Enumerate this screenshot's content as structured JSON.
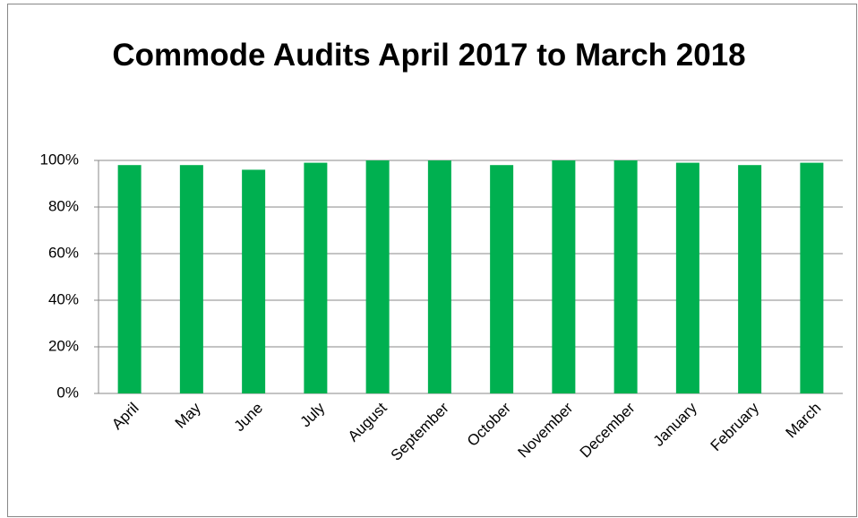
{
  "chart_data": {
    "type": "bar",
    "title": "Commode Audits April 2017 to March 2018",
    "categories": [
      "April",
      "May",
      "June",
      "July",
      "August",
      "September",
      "October",
      "November",
      "December",
      "January",
      "February",
      "March"
    ],
    "values": [
      98,
      98,
      96,
      99,
      100,
      100,
      98,
      100,
      100,
      99,
      98,
      99
    ],
    "color": "#00b050",
    "ylim": [
      0,
      100
    ],
    "yticks": [
      {
        "value": 0,
        "label": "0%"
      },
      {
        "value": 20,
        "label": "20%"
      },
      {
        "value": 40,
        "label": "40%"
      },
      {
        "value": 60,
        "label": "60%"
      },
      {
        "value": 80,
        "label": "80%"
      },
      {
        "value": 100,
        "label": "100%"
      }
    ],
    "grid": true
  }
}
